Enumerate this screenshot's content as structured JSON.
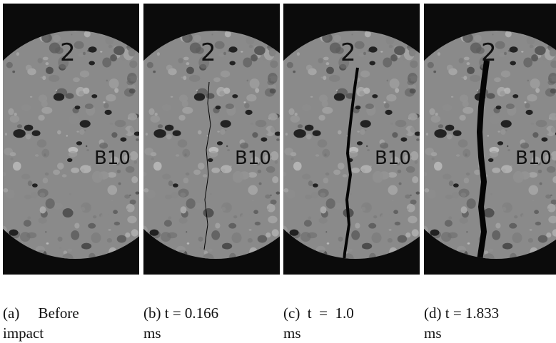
{
  "figure": {
    "panels": [
      {
        "id": "a",
        "caption_line1": "(a)     Before",
        "caption_line2": "impact",
        "crack": "none"
      },
      {
        "id": "b",
        "caption_line1": "(b) t = 0.166",
        "caption_line2": "ms",
        "crack": "hairline"
      },
      {
        "id": "c",
        "caption_line1": "(c)  t  =  1.0",
        "caption_line2": "ms",
        "crack": "open"
      },
      {
        "id": "d",
        "caption_line1": "(d) t = 1.833",
        "caption_line2": "ms",
        "crack": "wide"
      }
    ],
    "specimen_marks": {
      "number": "2",
      "label": "B10"
    },
    "colors": {
      "background": "#0b0b0b",
      "specimen": "#8a8a8a",
      "crack": "#050505"
    }
  }
}
